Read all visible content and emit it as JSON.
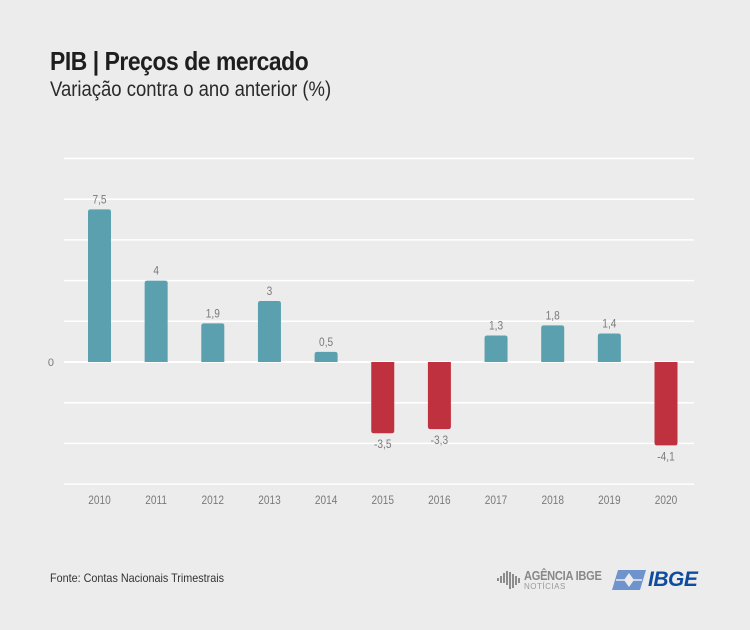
{
  "header": {
    "title": "PIB | Preços de mercado",
    "subtitle": "Variação contra o ano anterior (%)"
  },
  "footer": {
    "source": "Fonte: Contas Nacionais Trimestrais",
    "agencia_logo_top": "AGÊNCIA IBGE",
    "agencia_logo_bottom": "NOTÍCIAS",
    "ibge_logo": "IBGE",
    "agencia_icon": "brazil-map-bars-icon",
    "ibge_icon": "ibge-emblem-icon"
  },
  "colors": {
    "positive": "#5ba0ae",
    "negative": "#c0313f",
    "background": "#ececec",
    "gridline": "#ffffff",
    "label": "#7a7a7a",
    "ibge_blue": "#0e4d9e",
    "ibge_light_blue": "#6f93cc"
  },
  "chart_data": {
    "type": "bar",
    "title": "PIB | Preços de mercado",
    "subtitle": "Variação contra o ano anterior (%)",
    "xlabel": "",
    "ylabel": "",
    "categories": [
      "2010",
      "2011",
      "2012",
      "2013",
      "2014",
      "2015",
      "2016",
      "2017",
      "2018",
      "2019",
      "2020"
    ],
    "values": [
      7.5,
      4,
      1.9,
      3,
      0.5,
      -3.5,
      -3.3,
      1.3,
      1.8,
      1.4,
      -4.1
    ],
    "value_labels": [
      "7,5",
      "4",
      "1,9",
      "3",
      "0,5",
      "-3,5",
      "-3,3",
      "1,3",
      "1,8",
      "1,4",
      "-4,1"
    ],
    "ylim": [
      -6,
      10
    ],
    "grid_step": 2,
    "yticks_labeled": [
      {
        "value": 0,
        "label": "0"
      }
    ],
    "grid": true,
    "legend": "none"
  }
}
